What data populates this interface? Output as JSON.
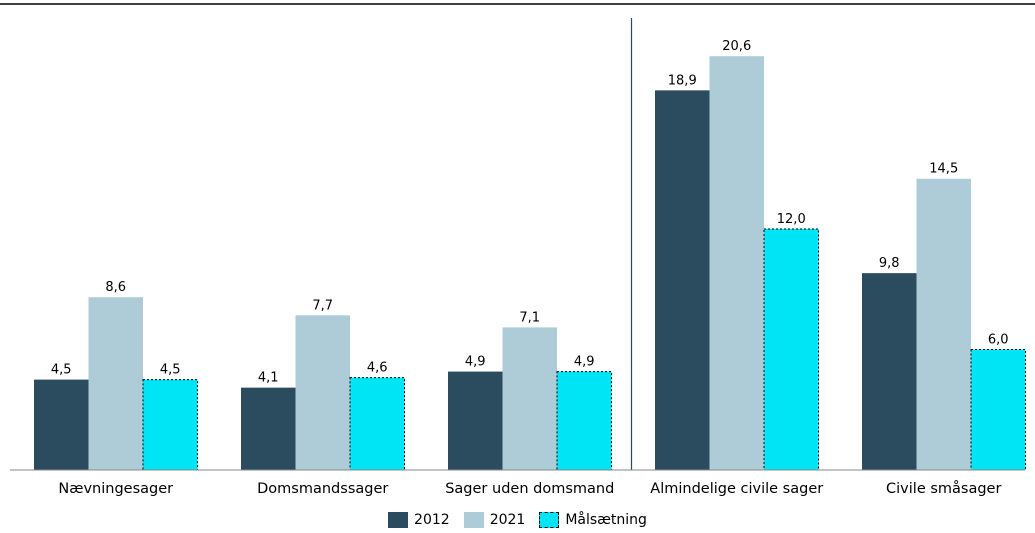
{
  "chart_data": {
    "type": "bar",
    "categories": [
      "Nævningesager",
      "Domsmandssager",
      "Sager uden domsmand",
      "Almindelige civile sager",
      "Civile småsager"
    ],
    "series": [
      {
        "name": "2012",
        "values": [
          4.5,
          4.1,
          4.9,
          18.9,
          9.8
        ],
        "labels": [
          "4,5",
          "4,1",
          "4,9",
          "18,9",
          "9,8"
        ],
        "color": "#2b4c5f"
      },
      {
        "name": "2021",
        "values": [
          8.6,
          7.7,
          7.1,
          20.6,
          14.5
        ],
        "labels": [
          "8,6",
          "7,7",
          "7,1",
          "20,6",
          "14,5"
        ],
        "color": "#adccd8"
      },
      {
        "name": "Målsætning",
        "values": [
          4.5,
          4.6,
          4.9,
          12.0,
          6.0
        ],
        "labels": [
          "4,5",
          "4,6",
          "4,9",
          "12,0",
          "6,0"
        ],
        "color": "#00e5f5"
      }
    ],
    "ylim": [
      0,
      22.9
    ],
    "grid": false,
    "legend": "bottom",
    "divider_after_category": 2
  }
}
